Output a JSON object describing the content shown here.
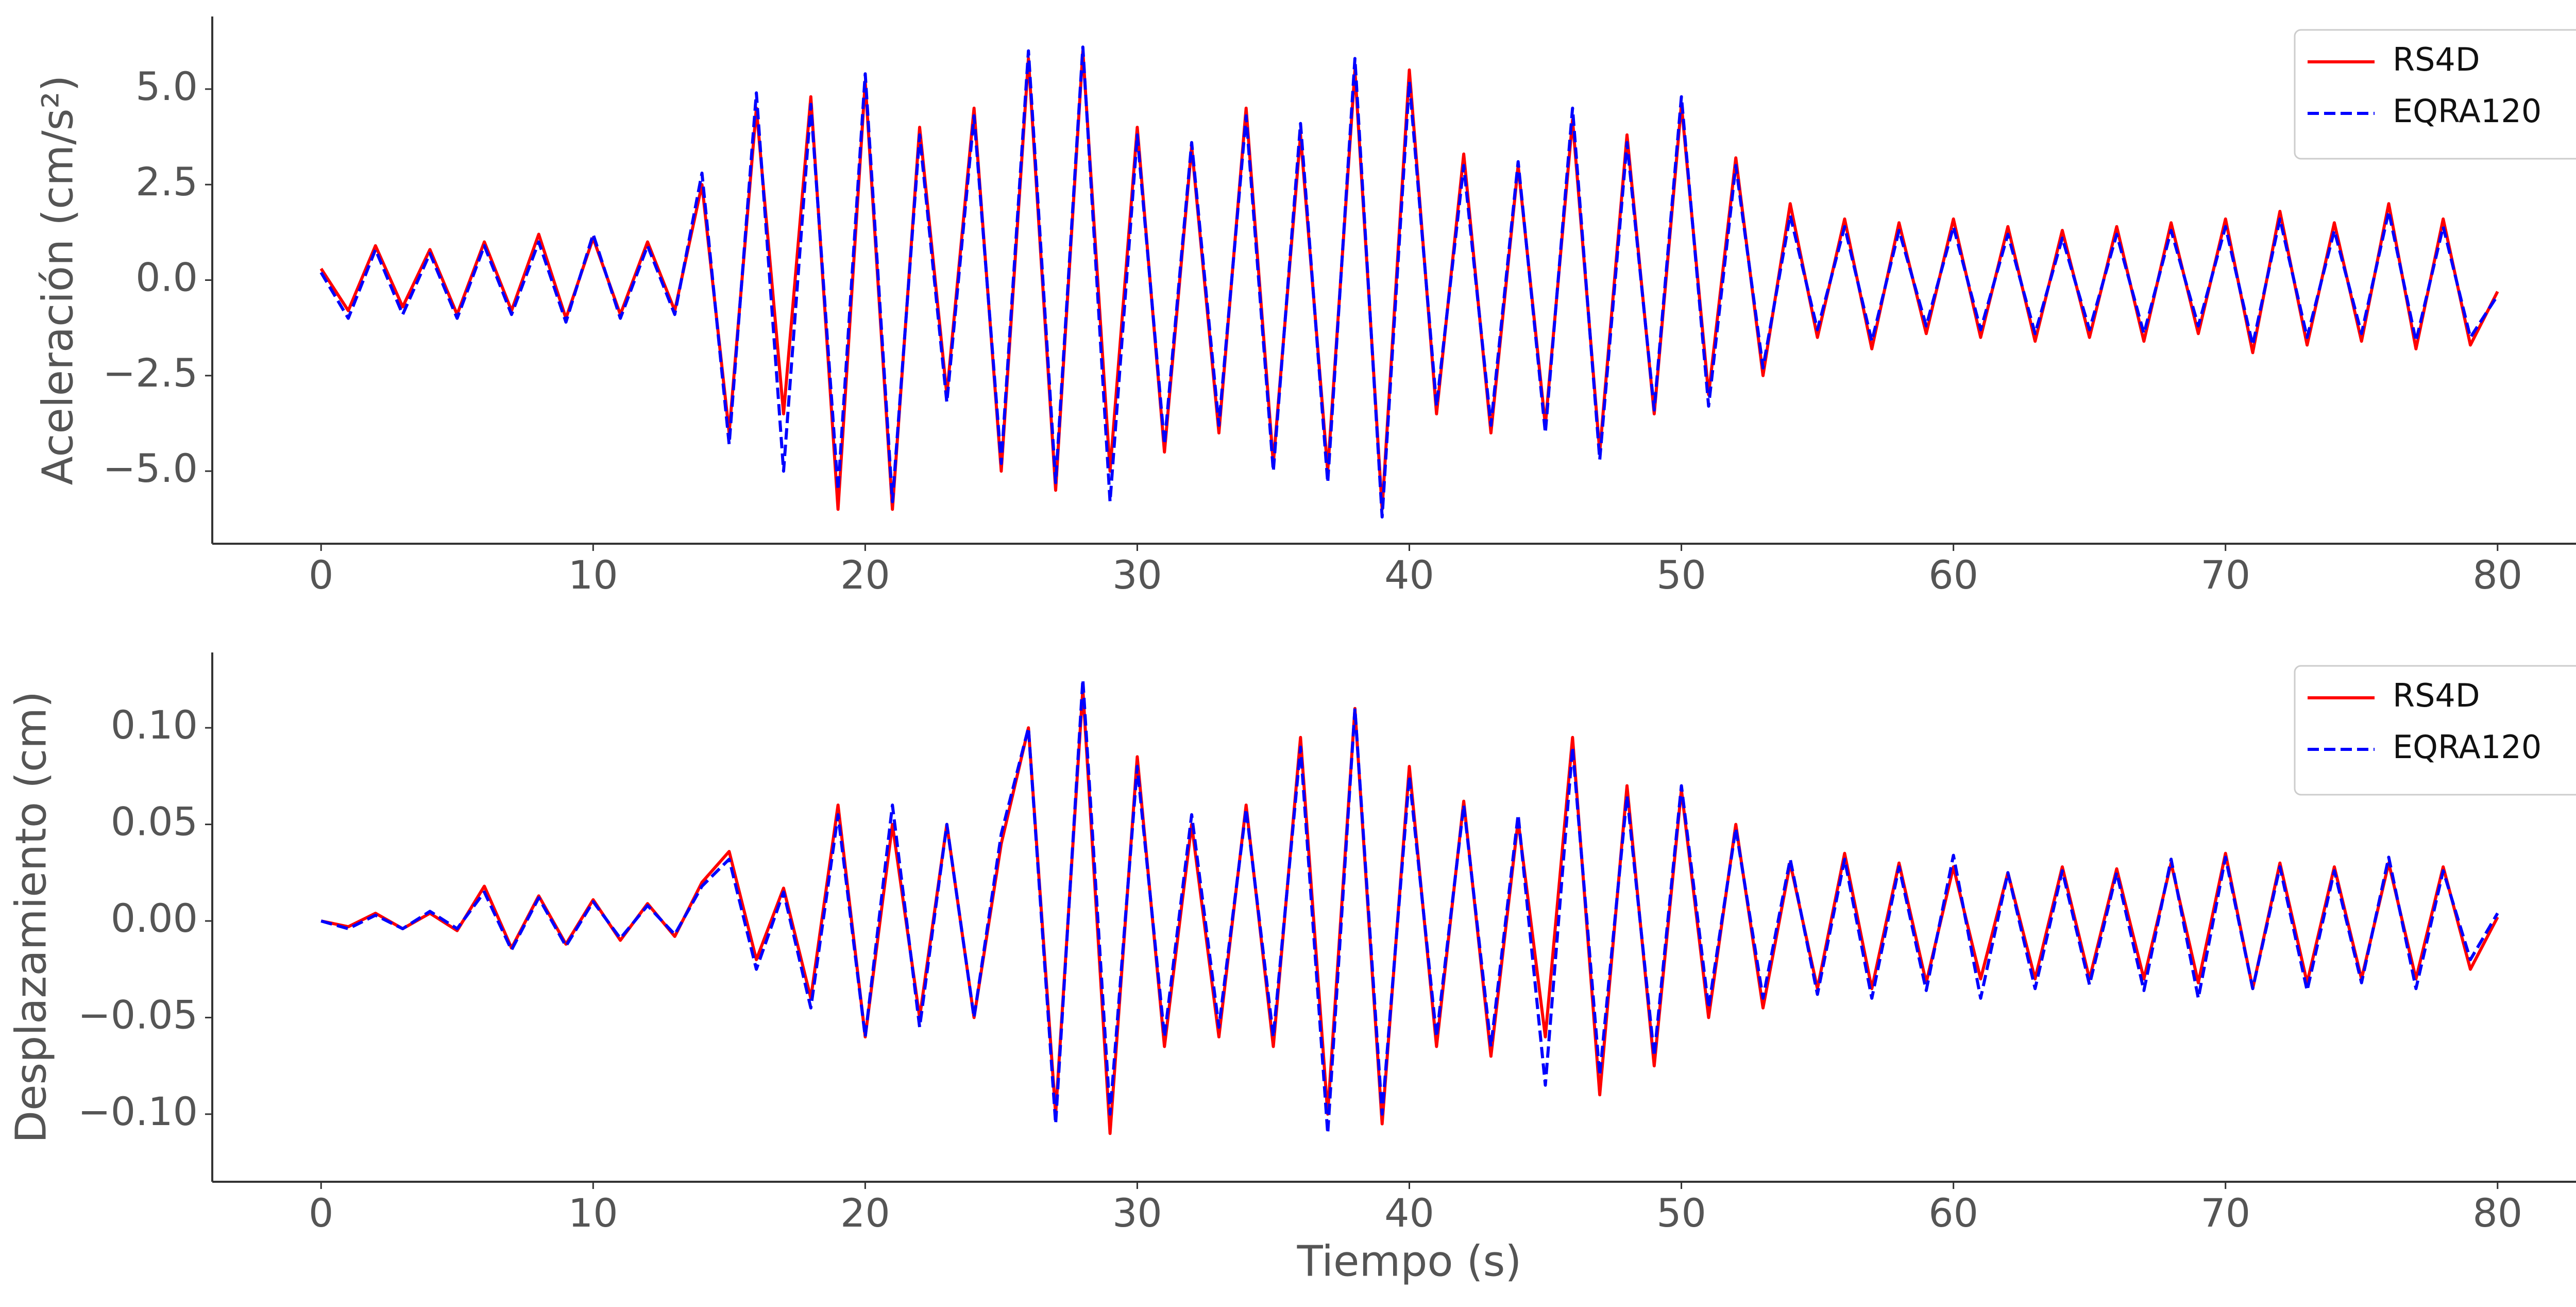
{
  "chart_data": [
    {
      "type": "line",
      "ylabel": "Aceleración (cm/s²)",
      "legend": "upper right",
      "grid": false,
      "x": [
        0,
        1,
        2,
        3,
        4,
        5,
        6,
        7,
        8,
        9,
        10,
        11,
        12,
        13,
        14,
        15,
        16,
        17,
        18,
        19,
        20,
        21,
        22,
        23,
        24,
        25,
        26,
        27,
        28,
        29,
        30,
        31,
        32,
        33,
        34,
        35,
        36,
        37,
        38,
        39,
        40,
        41,
        42,
        43,
        44,
        45,
        46,
        47,
        48,
        49,
        50,
        51,
        52,
        53,
        54,
        55,
        56,
        57,
        58,
        59,
        60,
        61,
        62,
        63,
        64,
        65,
        66,
        67,
        68,
        69,
        70,
        71,
        72,
        73,
        74,
        75,
        76,
        77,
        78,
        79,
        80
      ],
      "xlim": [
        -4,
        84
      ],
      "xticks": [
        0,
        10,
        20,
        30,
        40,
        50,
        60,
        70,
        80
      ],
      "ylim": [
        -6.9,
        6.9
      ],
      "yticks": [
        {
          "value": -5,
          "label": "−5.0"
        },
        {
          "value": -2.5,
          "label": "−2.5"
        },
        {
          "value": 0,
          "label": "0.0"
        },
        {
          "value": 2.5,
          "label": "2.5"
        },
        {
          "value": 5,
          "label": "5.0"
        }
      ],
      "series": [
        {
          "name": "RS4D",
          "color": "#ff0000",
          "linestyle": "solid",
          "values": [
            0.3,
            -0.8,
            0.9,
            -0.7,
            0.8,
            -0.9,
            1.0,
            -0.8,
            1.2,
            -1.0,
            1.1,
            -0.9,
            1.0,
            -0.8,
            2.5,
            -4.0,
            4.5,
            -3.5,
            4.8,
            -6.0,
            5.2,
            -6.0,
            4.0,
            -3.0,
            4.5,
            -5.0,
            5.8,
            -5.5,
            6.0,
            -5.0,
            4.0,
            -4.5,
            3.5,
            -4.0,
            4.5,
            -4.8,
            3.8,
            -5.0,
            5.5,
            -6.0,
            5.5,
            -3.5,
            3.3,
            -4.0,
            3.0,
            -3.8,
            4.2,
            -4.5,
            3.8,
            -3.5,
            4.6,
            -3.0,
            3.2,
            -2.5,
            2.0,
            -1.5,
            1.6,
            -1.8,
            1.5,
            -1.4,
            1.6,
            -1.5,
            1.4,
            -1.6,
            1.3,
            -1.5,
            1.4,
            -1.6,
            1.5,
            -1.4,
            1.6,
            -1.9,
            1.8,
            -1.7,
            1.5,
            -1.6,
            2.0,
            -1.8,
            1.6,
            -1.7,
            -0.3
          ]
        },
        {
          "name": "EQRA120",
          "color": "#0000ff",
          "linestyle": "dashed",
          "values": [
            0.2,
            -1.0,
            0.8,
            -0.9,
            0.7,
            -1.0,
            0.9,
            -0.9,
            1.0,
            -1.1,
            1.2,
            -1.0,
            0.9,
            -0.9,
            2.8,
            -4.3,
            4.9,
            -5.0,
            4.6,
            -5.5,
            5.4,
            -5.8,
            3.8,
            -3.2,
            4.3,
            -4.8,
            6.0,
            -5.3,
            6.1,
            -5.8,
            3.8,
            -4.3,
            3.6,
            -3.8,
            4.3,
            -5.0,
            4.1,
            -5.3,
            5.8,
            -6.2,
            5.2,
            -3.3,
            3.0,
            -3.8,
            3.1,
            -4.0,
            4.5,
            -4.7,
            3.6,
            -3.4,
            4.8,
            -3.3,
            3.0,
            -2.3,
            1.7,
            -1.3,
            1.4,
            -1.6,
            1.3,
            -1.2,
            1.4,
            -1.3,
            1.2,
            -1.4,
            1.1,
            -1.3,
            1.2,
            -1.4,
            1.3,
            -1.2,
            1.4,
            -1.7,
            1.6,
            -1.5,
            1.3,
            -1.4,
            1.8,
            -1.6,
            1.4,
            -1.5,
            -0.4
          ]
        }
      ]
    },
    {
      "type": "line",
      "ylabel": "Desplazamiento (cm)",
      "xlabel": "Tiempo (s)",
      "legend": "upper right",
      "grid": false,
      "x": [
        0,
        1,
        2,
        3,
        4,
        5,
        6,
        7,
        8,
        9,
        10,
        11,
        12,
        13,
        14,
        15,
        16,
        17,
        18,
        19,
        20,
        21,
        22,
        23,
        24,
        25,
        26,
        27,
        28,
        29,
        30,
        31,
        32,
        33,
        34,
        35,
        36,
        37,
        38,
        39,
        40,
        41,
        42,
        43,
        44,
        45,
        46,
        47,
        48,
        49,
        50,
        51,
        52,
        53,
        54,
        55,
        56,
        57,
        58,
        59,
        60,
        61,
        62,
        63,
        64,
        65,
        66,
        67,
        68,
        69,
        70,
        71,
        72,
        73,
        74,
        75,
        76,
        77,
        78,
        79,
        80
      ],
      "xlim": [
        -4,
        84
      ],
      "xticks": [
        0,
        10,
        20,
        30,
        40,
        50,
        60,
        70,
        80
      ],
      "ylim": [
        -0.135,
        0.139
      ],
      "yticks": [
        {
          "value": -0.1,
          "label": "−0.10"
        },
        {
          "value": -0.05,
          "label": "−0.05"
        },
        {
          "value": 0,
          "label": "0.00"
        },
        {
          "value": 0.05,
          "label": "0.05"
        },
        {
          "value": 0.1,
          "label": "0.10"
        }
      ],
      "series": [
        {
          "name": "RS4D",
          "color": "#ff0000",
          "linestyle": "solid",
          "values": [
            0.0,
            -0.003,
            0.004,
            -0.004,
            0.004,
            -0.005,
            0.018,
            -0.014,
            0.013,
            -0.012,
            0.011,
            -0.01,
            0.009,
            -0.008,
            0.02,
            0.036,
            -0.02,
            0.017,
            -0.04,
            0.06,
            -0.06,
            0.05,
            -0.05,
            0.05,
            -0.05,
            0.04,
            0.1,
            -0.1,
            0.12,
            -0.11,
            0.085,
            -0.065,
            0.05,
            -0.06,
            0.06,
            -0.065,
            0.095,
            -0.1,
            0.11,
            -0.105,
            0.08,
            -0.065,
            0.062,
            -0.07,
            0.052,
            -0.06,
            0.095,
            -0.09,
            0.07,
            -0.075,
            0.068,
            -0.05,
            0.05,
            -0.045,
            0.03,
            -0.035,
            0.035,
            -0.035,
            0.03,
            -0.032,
            0.028,
            -0.03,
            0.025,
            -0.03,
            0.028,
            -0.03,
            0.027,
            -0.03,
            0.03,
            -0.032,
            0.035,
            -0.035,
            0.03,
            -0.032,
            0.028,
            -0.03,
            0.03,
            -0.03,
            0.028,
            -0.025,
            0.002
          ]
        },
        {
          "name": "EQRA120",
          "color": "#0000ff",
          "linestyle": "dashed",
          "values": [
            0.0,
            -0.004,
            0.003,
            -0.004,
            0.005,
            -0.004,
            0.015,
            -0.015,
            0.012,
            -0.013,
            0.01,
            -0.009,
            0.008,
            -0.007,
            0.018,
            0.032,
            -0.025,
            0.015,
            -0.045,
            0.055,
            -0.06,
            0.06,
            -0.055,
            0.05,
            -0.05,
            0.045,
            0.1,
            -0.105,
            0.125,
            -0.1,
            0.08,
            -0.06,
            0.055,
            -0.055,
            0.058,
            -0.06,
            0.09,
            -0.11,
            0.11,
            -0.1,
            0.075,
            -0.06,
            0.06,
            -0.065,
            0.055,
            -0.085,
            0.09,
            -0.08,
            0.065,
            -0.07,
            0.07,
            -0.045,
            0.048,
            -0.04,
            0.032,
            -0.038,
            0.032,
            -0.04,
            0.028,
            -0.036,
            0.034,
            -0.04,
            0.025,
            -0.035,
            0.026,
            -0.033,
            0.025,
            -0.036,
            0.032,
            -0.04,
            0.033,
            -0.035,
            0.028,
            -0.036,
            0.026,
            -0.032,
            0.033,
            -0.035,
            0.026,
            -0.02,
            0.004
          ]
        }
      ]
    }
  ]
}
